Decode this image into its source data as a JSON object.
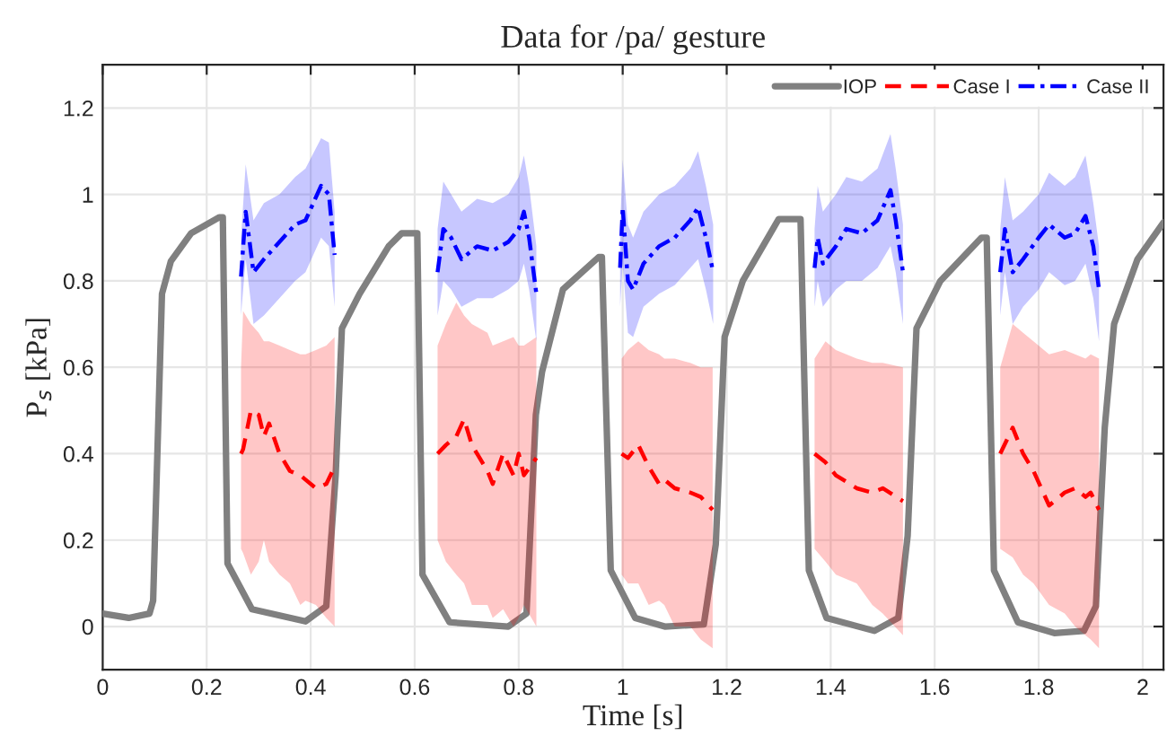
{
  "chart_data": {
    "type": "line",
    "title": "Data for /pa/ gesture",
    "xlabel": "Time [s]",
    "ylabel": "P$_{s}$ [kPa]",
    "xlim": [
      0,
      2.04
    ],
    "ylim": [
      -0.1,
      1.3
    ],
    "xticks": [
      0,
      0.2,
      0.4,
      0.6,
      0.8,
      1,
      1.2,
      1.4,
      1.6,
      1.8,
      2
    ],
    "yticks": [
      0,
      0.2,
      0.4,
      0.6,
      0.8,
      1,
      1.2
    ],
    "grid": true,
    "legend": "top right",
    "series": [
      {
        "name": "IOP",
        "color": "#808080",
        "line_style": "solid",
        "x": [
          0,
          0.05,
          0.09,
          0.097,
          0.114,
          0.131,
          0.17,
          0.224,
          0.231,
          0.24,
          0.287,
          0.39,
          0.43,
          0.448,
          0.46,
          0.494,
          0.55,
          0.575,
          0.6,
          0.605,
          0.615,
          0.667,
          0.78,
          0.815,
          0.833,
          0.845,
          0.885,
          0.954,
          0.96,
          0.977,
          1.024,
          1.081,
          1.156,
          1.179,
          1.196,
          1.231,
          1.3,
          1.336,
          1.342,
          1.358,
          1.392,
          1.484,
          1.53,
          1.548,
          1.565,
          1.611,
          1.69,
          1.7,
          1.714,
          1.76,
          1.83,
          1.887,
          1.91,
          1.927,
          1.945,
          1.99,
          2.04
        ],
        "values": [
          0.03,
          0.02,
          0.03,
          0.06,
          0.77,
          0.845,
          0.91,
          0.947,
          0.947,
          0.146,
          0.04,
          0.012,
          0.047,
          0.35,
          0.69,
          0.77,
          0.88,
          0.91,
          0.91,
          0.91,
          0.12,
          0.01,
          0.0,
          0.03,
          0.49,
          0.59,
          0.78,
          0.855,
          0.855,
          0.13,
          0.02,
          0.0,
          0.005,
          0.19,
          0.67,
          0.8,
          0.943,
          0.943,
          0.943,
          0.13,
          0.02,
          -0.01,
          0.02,
          0.21,
          0.69,
          0.8,
          0.9,
          0.9,
          0.13,
          0.01,
          -0.015,
          -0.01,
          0.047,
          0.46,
          0.7,
          0.85,
          0.935
        ]
      },
      {
        "name": "Case I",
        "color": "#ff0000",
        "line_style": "dashed",
        "x": [
          0.266,
          0.27,
          0.285,
          0.3,
          0.31,
          0.32,
          0.34,
          0.36,
          0.38,
          0.39,
          0.41,
          0.43,
          0.446,
          null,
          0.644,
          0.66,
          0.68,
          0.695,
          0.71,
          0.74,
          0.75,
          0.77,
          0.79,
          0.8,
          0.81,
          0.834,
          null,
          0.998,
          1.01,
          1.03,
          1.05,
          1.07,
          1.08,
          1.1,
          1.13,
          1.15,
          1.173,
          null,
          1.369,
          1.39,
          1.41,
          1.45,
          1.48,
          1.5,
          1.539,
          null,
          1.726,
          1.75,
          1.77,
          1.79,
          1.82,
          1.85,
          1.87,
          1.89,
          1.9,
          1.916
        ],
        "values": [
          0.4,
          0.41,
          0.5,
          0.49,
          0.44,
          0.47,
          0.4,
          0.36,
          0.35,
          0.34,
          0.32,
          0.33,
          0.37,
          null,
          0.4,
          0.42,
          0.44,
          0.48,
          0.42,
          0.36,
          0.33,
          0.4,
          0.35,
          0.4,
          0.35,
          0.39,
          null,
          0.4,
          0.39,
          0.42,
          0.37,
          0.33,
          0.34,
          0.32,
          0.31,
          0.3,
          0.27,
          null,
          0.4,
          0.38,
          0.35,
          0.32,
          0.31,
          0.32,
          0.29,
          null,
          0.4,
          0.46,
          0.4,
          0.36,
          0.28,
          0.31,
          0.32,
          0.3,
          0.31,
          0.27
        ],
        "lower": [
          0.18,
          0.17,
          0.12,
          0.15,
          0.2,
          0.15,
          0.12,
          0.1,
          0.05,
          0.06,
          0.05,
          0.02,
          0.0,
          null,
          0.2,
          0.15,
          0.12,
          0.1,
          0.05,
          0.05,
          0.02,
          0.04,
          0.0,
          0.02,
          0.05,
          0.0,
          null,
          0.12,
          0.1,
          0.1,
          0.05,
          0.06,
          0.05,
          0.0,
          0.0,
          -0.03,
          -0.05,
          null,
          0.18,
          0.15,
          0.12,
          0.1,
          0.05,
          0.03,
          -0.02,
          null,
          0.18,
          0.16,
          0.12,
          0.1,
          0.05,
          0.03,
          0.0,
          -0.02,
          -0.03,
          -0.05
        ],
        "upper": [
          0.6,
          0.73,
          0.7,
          0.68,
          0.66,
          0.66,
          0.65,
          0.64,
          0.63,
          0.63,
          0.64,
          0.65,
          0.67,
          null,
          0.65,
          0.7,
          0.75,
          0.72,
          0.7,
          0.68,
          0.65,
          0.66,
          0.67,
          0.65,
          0.65,
          0.67,
          null,
          0.62,
          0.64,
          0.66,
          0.64,
          0.63,
          0.62,
          0.62,
          0.61,
          0.6,
          0.6,
          null,
          0.62,
          0.66,
          0.64,
          0.62,
          0.61,
          0.61,
          0.6,
          null,
          0.6,
          0.7,
          0.68,
          0.66,
          0.63,
          0.64,
          0.63,
          0.62,
          0.63,
          0.62
        ]
      },
      {
        "name": "Case II",
        "color": "#0000ff",
        "line_style": "dashdot",
        "x": [
          0.266,
          0.275,
          0.29,
          0.31,
          0.34,
          0.37,
          0.39,
          0.42,
          0.435,
          0.446,
          null,
          0.644,
          0.655,
          0.67,
          0.69,
          0.72,
          0.75,
          0.78,
          0.8,
          0.81,
          0.82,
          0.834,
          null,
          0.995,
          1.0,
          1.01,
          1.02,
          1.04,
          1.07,
          1.1,
          1.13,
          1.145,
          1.16,
          1.174,
          null,
          1.369,
          1.375,
          1.385,
          1.41,
          1.43,
          1.46,
          1.49,
          1.515,
          1.525,
          1.539,
          null,
          1.726,
          1.735,
          1.75,
          1.77,
          1.8,
          1.82,
          1.85,
          1.87,
          1.89,
          1.905,
          1.916
        ],
        "values": [
          0.81,
          0.96,
          0.82,
          0.85,
          0.89,
          0.93,
          0.94,
          1.02,
          1.0,
          0.86,
          null,
          0.82,
          0.92,
          0.9,
          0.85,
          0.88,
          0.87,
          0.89,
          0.92,
          0.96,
          0.9,
          0.77,
          null,
          0.83,
          0.97,
          0.8,
          0.78,
          0.84,
          0.88,
          0.9,
          0.94,
          0.97,
          0.9,
          0.82,
          null,
          0.83,
          0.9,
          0.84,
          0.88,
          0.92,
          0.91,
          0.94,
          1.01,
          0.94,
          0.82,
          null,
          0.82,
          0.92,
          0.82,
          0.85,
          0.9,
          0.93,
          0.9,
          0.91,
          0.95,
          0.88,
          0.78
        ],
        "lower": [
          0.72,
          0.85,
          0.7,
          0.72,
          0.76,
          0.8,
          0.82,
          0.9,
          0.88,
          0.74,
          null,
          0.72,
          0.8,
          0.78,
          0.74,
          0.76,
          0.76,
          0.78,
          0.8,
          0.84,
          0.78,
          0.66,
          null,
          0.74,
          0.84,
          0.68,
          0.67,
          0.74,
          0.77,
          0.79,
          0.83,
          0.85,
          0.78,
          0.7,
          null,
          0.74,
          0.8,
          0.74,
          0.78,
          0.8,
          0.8,
          0.83,
          0.88,
          0.82,
          0.7,
          null,
          0.72,
          0.82,
          0.7,
          0.74,
          0.78,
          0.82,
          0.79,
          0.8,
          0.84,
          0.76,
          0.66
        ],
        "upper": [
          0.9,
          1.07,
          0.94,
          0.98,
          1.0,
          1.04,
          1.06,
          1.13,
          1.12,
          0.96,
          null,
          0.92,
          1.03,
          1.0,
          0.96,
          0.99,
          0.98,
          1.0,
          1.04,
          1.09,
          1.02,
          0.88,
          null,
          0.92,
          1.08,
          0.93,
          0.9,
          0.96,
          1.0,
          1.02,
          1.06,
          1.1,
          1.02,
          0.93,
          null,
          0.92,
          1.02,
          0.96,
          1.0,
          1.04,
          1.03,
          1.06,
          1.14,
          1.06,
          0.93,
          null,
          0.92,
          1.04,
          0.94,
          0.96,
          1.0,
          1.05,
          1.02,
          1.04,
          1.09,
          0.98,
          0.88
        ]
      }
    ]
  }
}
